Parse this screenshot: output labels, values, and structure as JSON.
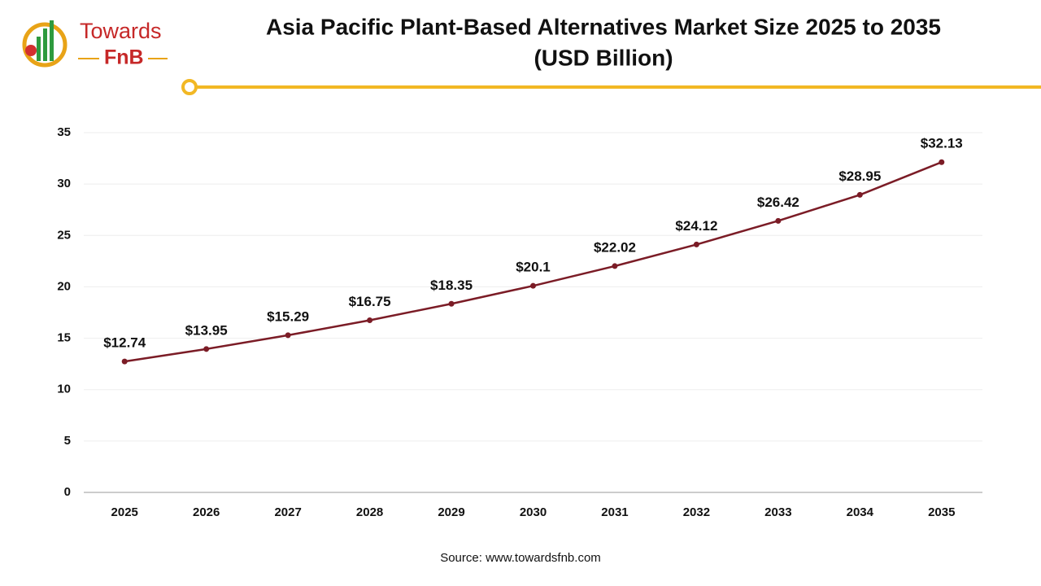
{
  "logo": {
    "top": "Towards",
    "bottom": "FnB"
  },
  "chart_data": {
    "type": "line",
    "title": "Asia Pacific Plant-Based Alternatives Market Size 2025 to 2035",
    "subtitle": "(USD Billion)",
    "categories": [
      "2025",
      "2026",
      "2027",
      "2028",
      "2029",
      "2030",
      "2031",
      "2032",
      "2033",
      "2034",
      "2035"
    ],
    "values": [
      12.74,
      13.95,
      15.29,
      16.75,
      18.35,
      20.1,
      22.02,
      24.12,
      26.42,
      28.95,
      32.13
    ],
    "value_labels": [
      "$12.74",
      "$13.95",
      "$15.29",
      "$16.75",
      "$18.35",
      "$20.1",
      "$22.02",
      "$24.12",
      "$26.42",
      "$28.95",
      "$32.13"
    ],
    "color": "#7b1c26",
    "ylim": [
      0,
      35
    ],
    "yticks": [
      0,
      5,
      10,
      15,
      20,
      25,
      30,
      35
    ],
    "grid": true,
    "source": "Source: www.towardsfnb.com"
  }
}
